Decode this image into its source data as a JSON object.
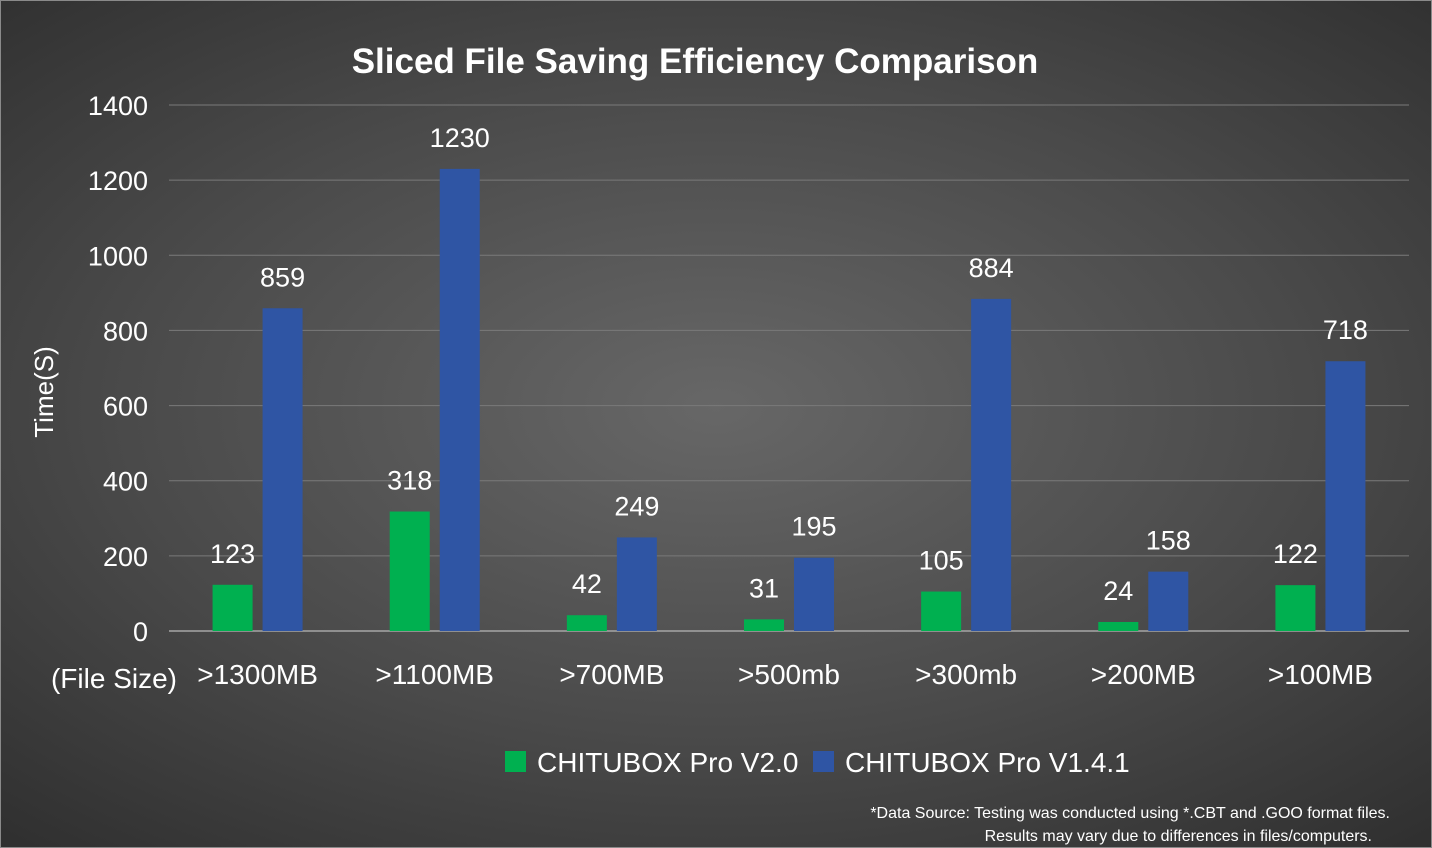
{
  "chart_data": {
    "type": "bar",
    "title": "Sliced File Saving Efficiency Comparison",
    "ylabel": "Time(S)",
    "xlabel": "(File Size)",
    "categories": [
      ">1300MB",
      ">1100MB",
      ">700MB",
      ">500mb",
      ">300mb",
      ">200MB",
      ">100MB"
    ],
    "series": [
      {
        "name": "CHITUBOX Pro V2.0",
        "color": "#00b050",
        "values": [
          123,
          318,
          42,
          31,
          105,
          24,
          122
        ]
      },
      {
        "name": "CHITUBOX Pro V1.4.1",
        "color": "#2f55a4",
        "values": [
          859,
          1230,
          249,
          195,
          884,
          158,
          718
        ]
      }
    ],
    "ylim": [
      0,
      1400
    ],
    "yticks": [
      0,
      200,
      400,
      600,
      800,
      1000,
      1200,
      1400
    ],
    "grid": true,
    "legend_position": "bottom",
    "data_labels": true
  },
  "footnote": {
    "line1": "*Data Source: Testing was conducted using *.CBT and .GOO format files.",
    "line2": "Results may vary due to differences in files/computers."
  }
}
